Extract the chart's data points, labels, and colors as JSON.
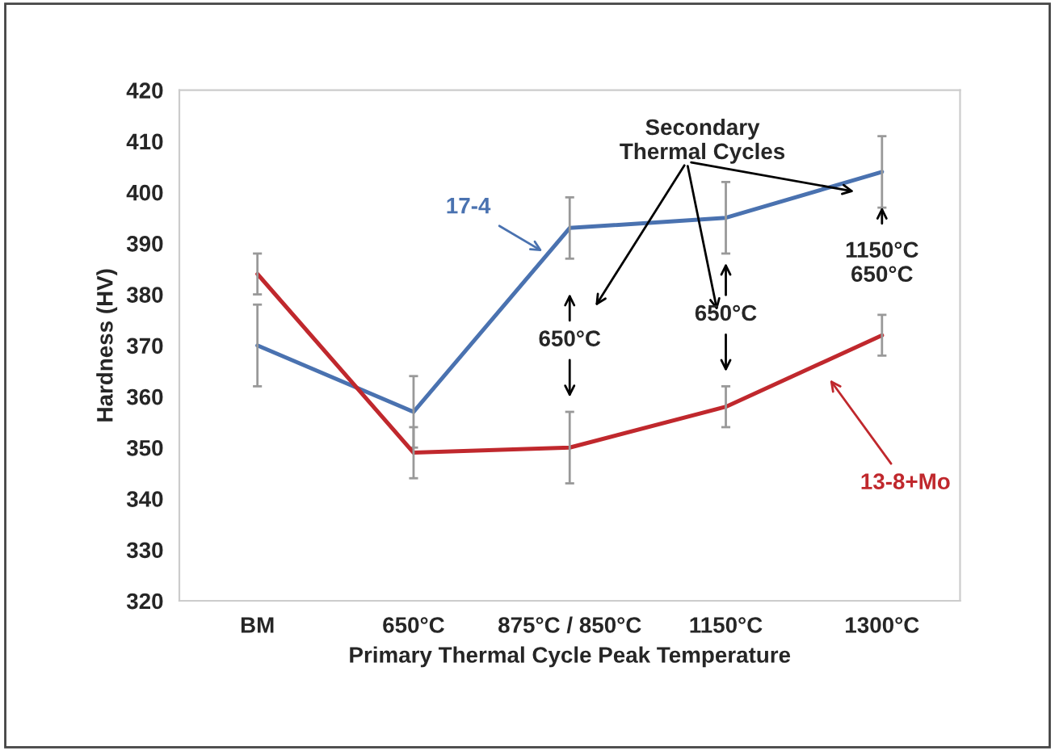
{
  "chart_data": {
    "type": "line",
    "xlabel": "Primary Thermal Cycle Peak Temperature",
    "ylabel": "Hardness (HV)",
    "categories": [
      "BM",
      "650°C",
      "875°C / 850°C",
      "1150°C",
      "1300°C"
    ],
    "series": [
      {
        "name": "17-4",
        "color": "#4a72b0",
        "values": [
          370,
          357,
          393,
          395,
          404
        ],
        "errors": [
          8,
          7,
          6,
          7,
          7
        ]
      },
      {
        "name": "13-8+Mo",
        "color": "#c0282d",
        "values": [
          384,
          349,
          350,
          358,
          372
        ],
        "errors": [
          4,
          5,
          7,
          4,
          4
        ]
      }
    ],
    "ylim": [
      320,
      420
    ],
    "yticks": [
      320,
      330,
      340,
      350,
      360,
      370,
      380,
      390,
      400,
      410,
      420
    ],
    "annotations": [
      "Secondary\nThermal Cycles",
      "650°C",
      "650°C",
      "1150°C\n650°C"
    ],
    "grid": false,
    "legend": false,
    "marker": "none",
    "line_style": "solid"
  }
}
